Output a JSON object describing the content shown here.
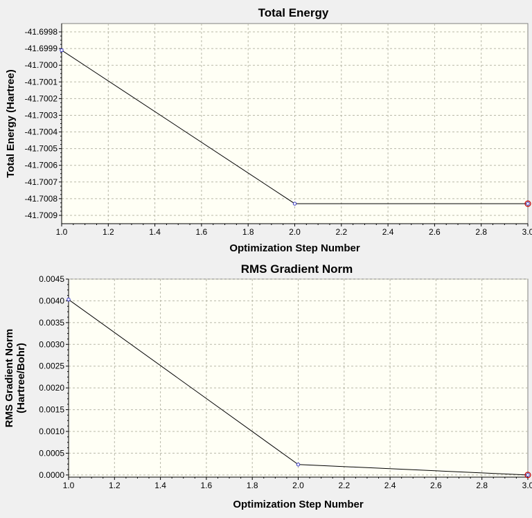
{
  "charts": [
    {
      "type": "line",
      "title": "Total Energy",
      "xlabel": "Optimization Step Number",
      "ylabel": "Total Energy (Hartree)",
      "xlim": [
        1.0,
        3.0
      ],
      "ylim": [
        -41.70095,
        -41.69975
      ],
      "x_ticks": [
        "1.0",
        "1.2",
        "1.4",
        "1.6",
        "1.8",
        "2.0",
        "2.2",
        "2.4",
        "2.6",
        "2.8",
        "3.0"
      ],
      "y_ticks": [
        "-41.6998",
        "-41.6999",
        "-41.7000",
        "-41.7001",
        "-41.7002",
        "-41.7003",
        "-41.7004",
        "-41.7005",
        "-41.7006",
        "-41.7007",
        "-41.7008",
        "-41.7009"
      ],
      "series": [
        {
          "name": "Total Energy",
          "x": [
            1.0,
            2.0,
            3.0
          ],
          "y": [
            -41.69991,
            -41.70083,
            -41.70083
          ]
        }
      ],
      "colors": {
        "plot_bg": "#fffff5",
        "line": "#000000",
        "marker": "#3030c0",
        "last_marker": "#c00000"
      }
    },
    {
      "type": "line",
      "title": "RMS Gradient Norm",
      "xlabel": "Optimization Step Number",
      "ylabel": "RMS Gradient Norm (Hartree/Bohr)",
      "ylabel_lines": [
        "RMS Gradient Norm",
        "(Hartree/Bohr)"
      ],
      "xlim": [
        1.0,
        3.0
      ],
      "ylim": [
        -5e-05,
        0.0045
      ],
      "x_ticks": [
        "1.0",
        "1.2",
        "1.4",
        "1.6",
        "1.8",
        "2.0",
        "2.2",
        "2.4",
        "2.6",
        "2.8",
        "3.0"
      ],
      "y_ticks": [
        "0.0045",
        "0.0040",
        "0.0035",
        "0.0030",
        "0.0025",
        "0.0020",
        "0.0015",
        "0.0010",
        "0.0005",
        "0.0000"
      ],
      "series": [
        {
          "name": "RMS Gradient Norm",
          "x": [
            1.0,
            2.0,
            3.0
          ],
          "y": [
            0.00403,
            0.00024,
            0.0
          ]
        }
      ],
      "colors": {
        "plot_bg": "#fffff5",
        "line": "#000000",
        "marker": "#3030c0",
        "last_marker": "#c00000"
      }
    }
  ]
}
